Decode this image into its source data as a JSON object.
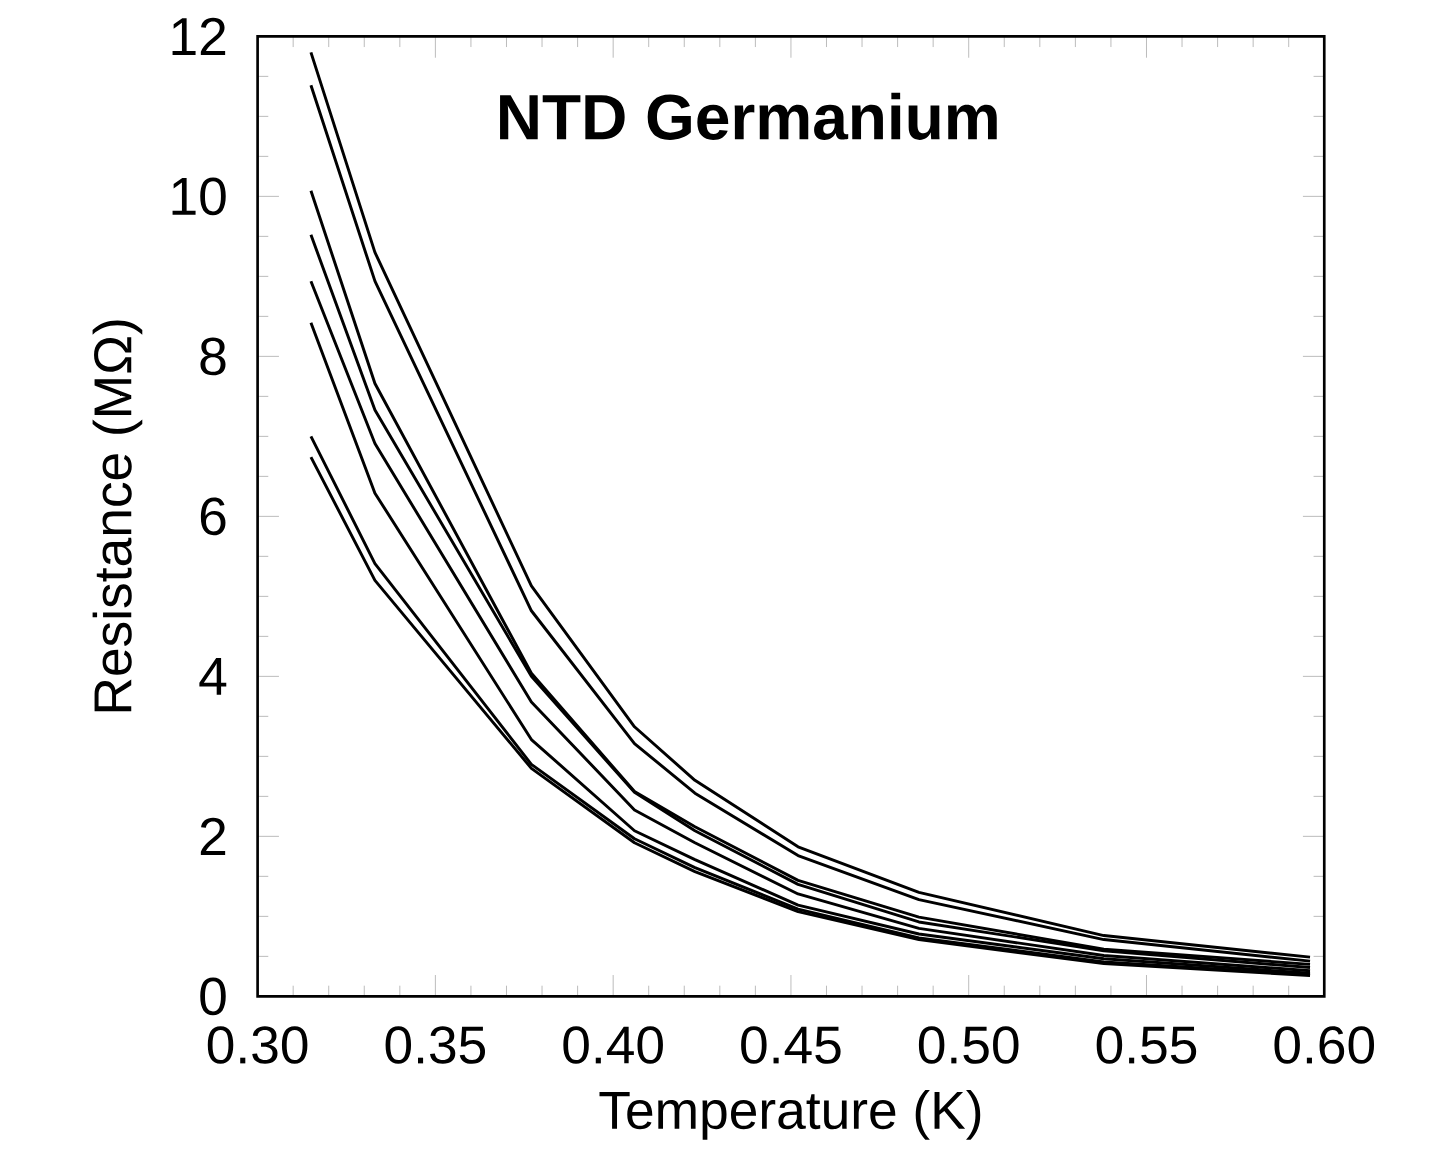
{
  "chart_data": {
    "type": "line",
    "title": "NTD Germanium",
    "xlabel": "Temperature (K)",
    "ylabel": "Resistance (MΩ)",
    "x": [
      0.315,
      0.333,
      0.377,
      0.406,
      0.423,
      0.452,
      0.486,
      0.538,
      0.596
    ],
    "series": [
      {
        "color": "#000000",
        "values": [
          11.8,
          9.3,
          5.13,
          3.37,
          2.7,
          1.87,
          1.3,
          0.76,
          0.49
        ]
      },
      {
        "color": "#000000",
        "values": [
          11.39,
          8.94,
          4.82,
          3.16,
          2.54,
          1.76,
          1.21,
          0.71,
          0.44
        ]
      },
      {
        "color": "#000000",
        "values": [
          10.07,
          7.66,
          4.04,
          2.56,
          2.12,
          1.45,
          0.99,
          0.59,
          0.4
        ]
      },
      {
        "color": "#000000",
        "values": [
          9.52,
          7.33,
          4.0,
          2.55,
          2.07,
          1.4,
          0.93,
          0.57,
          0.36
        ]
      },
      {
        "color": "#000000",
        "values": [
          8.94,
          6.91,
          3.68,
          2.33,
          1.92,
          1.28,
          0.85,
          0.51,
          0.32
        ]
      },
      {
        "color": "#000000",
        "values": [
          8.42,
          6.29,
          3.21,
          2.07,
          1.71,
          1.14,
          0.78,
          0.47,
          0.29
        ]
      },
      {
        "color": "#000000",
        "values": [
          7.0,
          5.41,
          2.9,
          1.97,
          1.61,
          1.09,
          0.73,
          0.43,
          0.27
        ]
      },
      {
        "color": "#000000",
        "values": [
          6.74,
          5.2,
          2.85,
          1.92,
          1.56,
          1.06,
          0.71,
          0.41,
          0.26
        ]
      }
    ],
    "xlim": [
      0.3,
      0.6
    ],
    "xticks": [
      {
        "value": 0.3,
        "label": "0.30"
      },
      {
        "value": 0.35,
        "label": "0.35"
      },
      {
        "value": 0.4,
        "label": "0.40"
      },
      {
        "value": 0.45,
        "label": "0.45"
      },
      {
        "value": 0.5,
        "label": "0.50"
      },
      {
        "value": 0.55,
        "label": "0.55"
      },
      {
        "value": 0.6,
        "label": "0.60"
      }
    ],
    "ylim": [
      0,
      12
    ],
    "yticks": [
      0,
      2,
      4,
      6,
      8,
      10,
      12
    ],
    "grid": false,
    "marker": "none",
    "line_style": "solid"
  }
}
